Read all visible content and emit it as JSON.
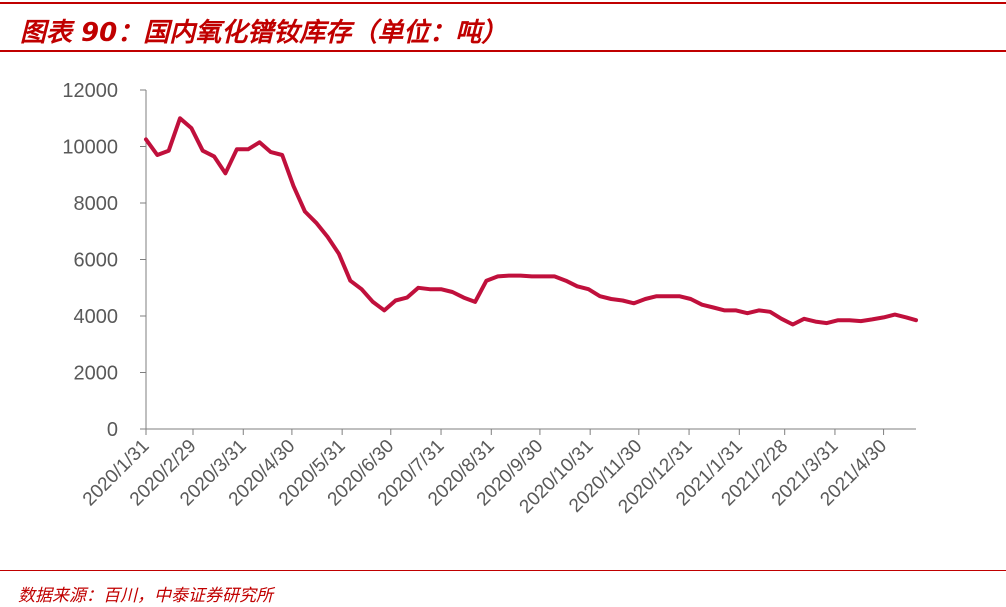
{
  "header": {
    "title": "图表 90：国内氧化镨钕库存（单位：吨）"
  },
  "footer": {
    "source": "数据来源：百川，中泰证券研究所"
  },
  "colors": {
    "accent": "#c00000",
    "line": "#c0103c",
    "axis": "#7f7f7f",
    "tick_text": "#595959"
  },
  "chart_data": {
    "type": "line",
    "title": "",
    "xlabel": "",
    "ylabel": "",
    "ylim": [
      0,
      12000
    ],
    "yticks": [
      0,
      2000,
      4000,
      6000,
      8000,
      10000,
      12000
    ],
    "grid": false,
    "legend": "none",
    "xticks": [
      "2020/1/31",
      "2020/2/29",
      "2020/3/31",
      "2020/4/30",
      "2020/5/31",
      "2020/6/30",
      "2020/7/31",
      "2020/8/31",
      "2020/9/30",
      "2020/10/31",
      "2020/11/30",
      "2020/12/31",
      "2021/1/31",
      "2021/2/28",
      "2021/3/31",
      "2021/4/30"
    ],
    "xlim": [
      "2020-01-31",
      "2021-05-20"
    ],
    "series": [
      {
        "points": [
          [
            "2020-01-31",
            10250
          ],
          [
            "2020-02-07",
            9700
          ],
          [
            "2020-02-14",
            9850
          ],
          [
            "2020-02-21",
            11000
          ],
          [
            "2020-02-28",
            10650
          ],
          [
            "2020-03-06",
            9850
          ],
          [
            "2020-03-13",
            9650
          ],
          [
            "2020-03-20",
            9050
          ],
          [
            "2020-03-27",
            9900
          ],
          [
            "2020-04-03",
            9900
          ],
          [
            "2020-04-10",
            10150
          ],
          [
            "2020-04-17",
            9800
          ],
          [
            "2020-04-24",
            9700
          ],
          [
            "2020-05-01",
            8600
          ],
          [
            "2020-05-08",
            7700
          ],
          [
            "2020-05-15",
            7300
          ],
          [
            "2020-05-22",
            6800
          ],
          [
            "2020-05-29",
            6200
          ],
          [
            "2020-06-05",
            5250
          ],
          [
            "2020-06-12",
            4950
          ],
          [
            "2020-06-19",
            4500
          ],
          [
            "2020-06-26",
            4200
          ],
          [
            "2020-07-03",
            4550
          ],
          [
            "2020-07-10",
            4650
          ],
          [
            "2020-07-17",
            5000
          ],
          [
            "2020-07-24",
            4950
          ],
          [
            "2020-07-31",
            4950
          ],
          [
            "2020-08-07",
            4850
          ],
          [
            "2020-08-14",
            4650
          ],
          [
            "2020-08-21",
            4500
          ],
          [
            "2020-08-28",
            5250
          ],
          [
            "2020-09-04",
            5400
          ],
          [
            "2020-09-11",
            5430
          ],
          [
            "2020-09-18",
            5430
          ],
          [
            "2020-09-25",
            5400
          ],
          [
            "2020-10-02",
            5400
          ],
          [
            "2020-10-09",
            5400
          ],
          [
            "2020-10-16",
            5250
          ],
          [
            "2020-10-23",
            5050
          ],
          [
            "2020-10-30",
            4950
          ],
          [
            "2020-11-06",
            4700
          ],
          [
            "2020-11-13",
            4600
          ],
          [
            "2020-11-20",
            4550
          ],
          [
            "2020-11-27",
            4450
          ],
          [
            "2020-12-04",
            4600
          ],
          [
            "2020-12-11",
            4700
          ],
          [
            "2020-12-18",
            4700
          ],
          [
            "2020-12-25",
            4700
          ],
          [
            "2021-01-01",
            4600
          ],
          [
            "2021-01-08",
            4400
          ],
          [
            "2021-01-15",
            4300
          ],
          [
            "2021-01-22",
            4200
          ],
          [
            "2021-01-29",
            4200
          ],
          [
            "2021-02-05",
            4100
          ],
          [
            "2021-02-12",
            4200
          ],
          [
            "2021-02-19",
            4150
          ],
          [
            "2021-02-26",
            3900
          ],
          [
            "2021-03-05",
            3700
          ],
          [
            "2021-03-12",
            3900
          ],
          [
            "2021-03-19",
            3800
          ],
          [
            "2021-03-26",
            3750
          ],
          [
            "2021-04-02",
            3850
          ],
          [
            "2021-04-09",
            3850
          ],
          [
            "2021-04-16",
            3820
          ],
          [
            "2021-04-23",
            3880
          ],
          [
            "2021-04-30",
            3950
          ],
          [
            "2021-05-07",
            4050
          ],
          [
            "2021-05-14",
            3950
          ],
          [
            "2021-05-20",
            3850
          ]
        ]
      }
    ]
  }
}
